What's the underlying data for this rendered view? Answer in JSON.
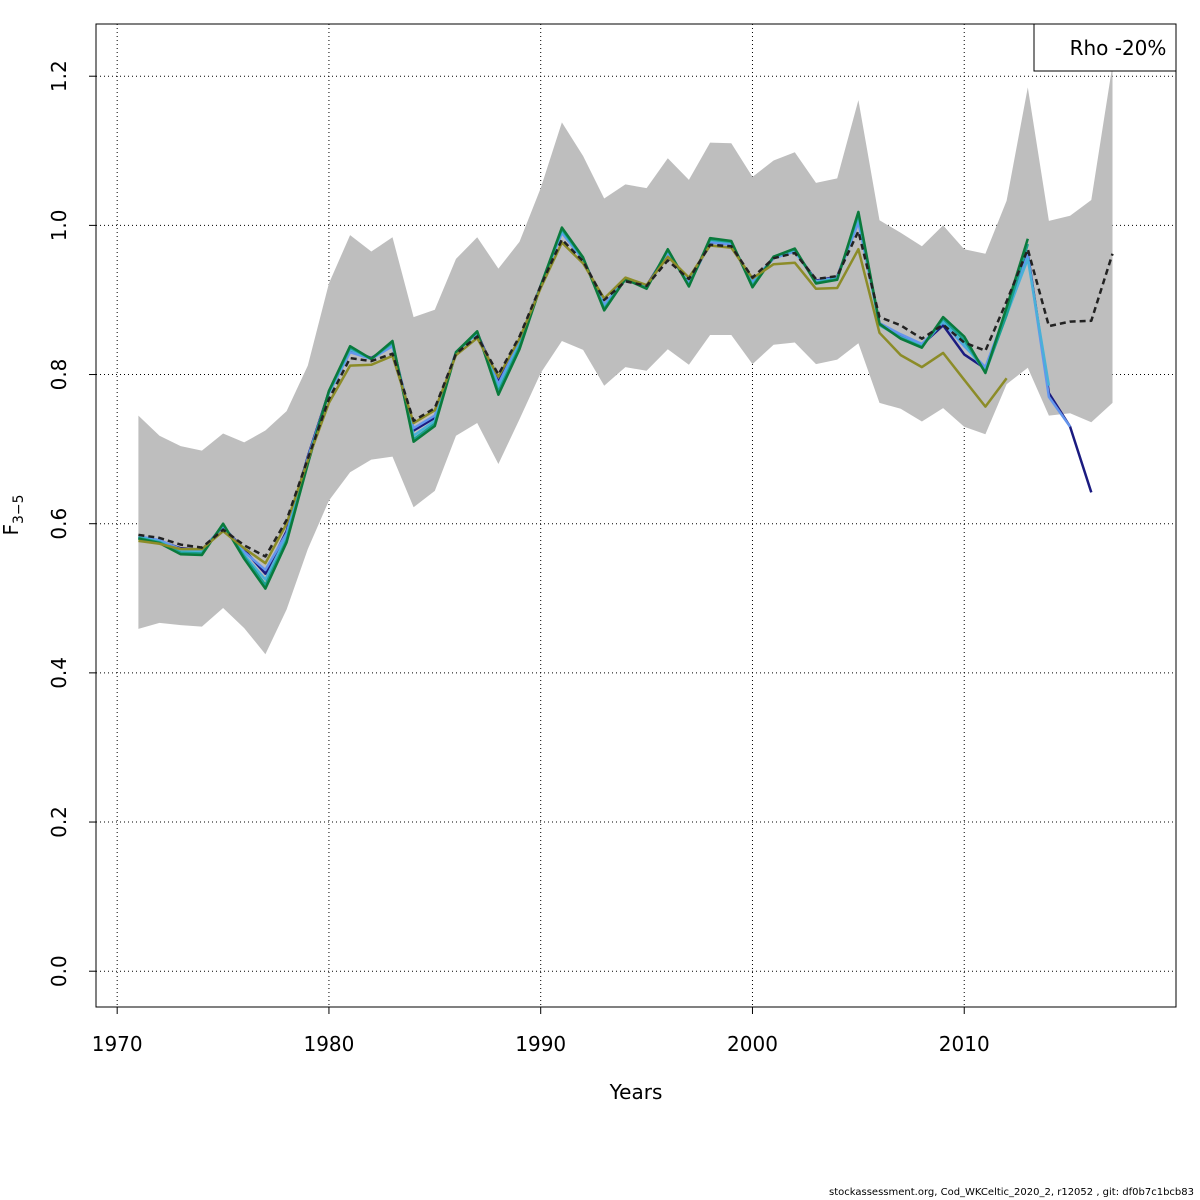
{
  "chart_data": {
    "type": "line",
    "title": "",
    "xlabel": "Years",
    "ylabel_main": "F",
    "ylabel_sub": "3−5",
    "xlim": [
      1969,
      2020
    ],
    "ylim": [
      -0.048,
      1.27
    ],
    "x_ticks": [
      1970,
      1980,
      1990,
      2000,
      2010
    ],
    "y_ticks": [
      0.0,
      0.2,
      0.4,
      0.6,
      0.8,
      1.0,
      1.2
    ],
    "x_tick_labels": [
      "1970",
      "1980",
      "1990",
      "2000",
      "2010"
    ],
    "y_tick_labels": [
      "0.0",
      "0.2",
      "0.4",
      "0.6",
      "0.8",
      "1.0",
      "1.2"
    ],
    "grid": true,
    "legend_placement": "top-right",
    "legend_text": "Rho -20%",
    "band": {
      "color": "#bebebe",
      "x": [
        1971,
        1972,
        1973,
        1974,
        1975,
        1976,
        1977,
        1978,
        1979,
        1980,
        1981,
        1982,
        1983,
        1984,
        1985,
        1986,
        1987,
        1988,
        1989,
        1990,
        1991,
        1992,
        1993,
        1994,
        1995,
        1996,
        1997,
        1998,
        1999,
        2000,
        2001,
        2002,
        2003,
        2004,
        2005,
        2006,
        2007,
        2008,
        2009,
        2010,
        2011,
        2012,
        2013,
        2014,
        2015,
        2016,
        2017
      ],
      "upper": [
        0.745,
        0.718,
        0.704,
        0.698,
        0.721,
        0.709,
        0.725,
        0.751,
        0.812,
        0.922,
        0.987,
        0.965,
        0.984,
        0.877,
        0.887,
        0.955,
        0.984,
        0.942,
        0.978,
        1.05,
        1.138,
        1.093,
        1.036,
        1.055,
        1.05,
        1.09,
        1.061,
        1.111,
        1.11,
        1.065,
        1.087,
        1.098,
        1.057,
        1.063,
        1.168,
        1.007,
        0.99,
        0.972,
        1.0,
        0.968,
        0.962,
        1.033,
        1.185,
        1.006,
        1.013,
        1.034,
        1.215
      ],
      "lower": [
        0.459,
        0.467,
        0.464,
        0.462,
        0.487,
        0.46,
        0.425,
        0.485,
        0.566,
        0.631,
        0.669,
        0.686,
        0.69,
        0.622,
        0.644,
        0.718,
        0.735,
        0.68,
        0.74,
        0.802,
        0.845,
        0.833,
        0.785,
        0.81,
        0.805,
        0.834,
        0.813,
        0.853,
        0.853,
        0.814,
        0.84,
        0.843,
        0.814,
        0.82,
        0.842,
        0.762,
        0.754,
        0.737,
        0.755,
        0.73,
        0.72,
        0.787,
        0.809,
        0.745,
        0.748,
        0.736,
        0.762
      ]
    },
    "series": [
      {
        "color": "#222222",
        "dashed": true,
        "x": [
          1971,
          1972,
          1973,
          1974,
          1975,
          1976,
          1977,
          1978,
          1979,
          1980,
          1981,
          1982,
          1983,
          1984,
          1985,
          1986,
          1987,
          1988,
          1989,
          1990,
          1991,
          1992,
          1993,
          1994,
          1995,
          1996,
          1997,
          1998,
          1999,
          2000,
          2001,
          2002,
          2003,
          2004,
          2005,
          2006,
          2007,
          2008,
          2009,
          2010,
          2011,
          2012,
          2013,
          2014,
          2015,
          2016,
          2017
        ],
        "values": [
          0.585,
          0.581,
          0.572,
          0.568,
          0.592,
          0.571,
          0.556,
          0.605,
          0.687,
          0.767,
          0.822,
          0.818,
          0.828,
          0.738,
          0.755,
          0.828,
          0.851,
          0.8,
          0.851,
          0.919,
          0.981,
          0.952,
          0.9,
          0.925,
          0.919,
          0.953,
          0.928,
          0.974,
          0.972,
          0.93,
          0.956,
          0.963,
          0.928,
          0.932,
          0.992,
          0.877,
          0.866,
          0.848,
          0.867,
          0.843,
          0.832,
          0.898,
          0.968,
          0.865,
          0.871,
          0.872,
          0.962
        ]
      },
      {
        "color": "#1b1b80",
        "x": [
          1971,
          1972,
          1973,
          1974,
          1975,
          1976,
          1977,
          1978,
          1979,
          1980,
          1981,
          1982,
          1983,
          1984,
          1985,
          1986,
          1987,
          1988,
          1989,
          1990,
          1991,
          1992,
          1993,
          1994,
          1995,
          1996,
          1997,
          1998,
          1999,
          2000,
          2001,
          2002,
          2003,
          2004,
          2005,
          2006,
          2007,
          2008,
          2009,
          2010,
          2011,
          2012,
          2013,
          2014,
          2015,
          2016
        ],
        "values": [
          0.582,
          0.577,
          0.567,
          0.565,
          0.596,
          0.565,
          0.533,
          0.59,
          0.69,
          0.777,
          0.833,
          0.822,
          0.84,
          0.725,
          0.742,
          0.83,
          0.856,
          0.79,
          0.846,
          0.919,
          0.992,
          0.955,
          0.893,
          0.928,
          0.919,
          0.965,
          0.921,
          0.978,
          0.975,
          0.924,
          0.956,
          0.966,
          0.926,
          0.931,
          1.008,
          0.868,
          0.853,
          0.84,
          0.866,
          0.827,
          0.808,
          0.882,
          0.962,
          0.775,
          0.73,
          0.642
        ]
      },
      {
        "color": "#6495ed",
        "x": [
          1971,
          1972,
          1973,
          1974,
          1975,
          1976,
          1977,
          1978,
          1979,
          1980,
          1981,
          1982,
          1983,
          1984,
          1985,
          1986,
          1987,
          1988,
          1989,
          1990,
          1991,
          1992,
          1993,
          1994,
          1995,
          1996,
          1997,
          1998,
          1999,
          2000,
          2001,
          2002,
          2003,
          2004,
          2005,
          2006,
          2007,
          2008,
          2009,
          2010,
          2011,
          2012,
          2013,
          2014,
          2015
        ],
        "values": [
          0.583,
          0.578,
          0.566,
          0.564,
          0.597,
          0.562,
          0.538,
          0.587,
          0.688,
          0.775,
          0.83,
          0.821,
          0.838,
          0.728,
          0.745,
          0.83,
          0.855,
          0.787,
          0.844,
          0.919,
          0.99,
          0.954,
          0.894,
          0.927,
          0.918,
          0.963,
          0.922,
          0.977,
          0.974,
          0.925,
          0.956,
          0.965,
          0.925,
          0.93,
          1.004,
          0.869,
          0.854,
          0.841,
          0.87,
          0.838,
          0.81,
          0.885,
          0.96,
          0.77,
          0.73
        ]
      },
      {
        "color": "#4ab0d8",
        "x": [
          1971,
          1972,
          1973,
          1974,
          1975,
          1976,
          1977,
          1978,
          1979,
          1980,
          1981,
          1982,
          1983,
          1984,
          1985,
          1986,
          1987,
          1988,
          1989,
          1990,
          1991,
          1992,
          1993,
          1994,
          1995,
          1996,
          1997,
          1998,
          1999,
          2000,
          2001,
          2002,
          2003,
          2004,
          2005,
          2006,
          2007,
          2008,
          2009,
          2010,
          2011,
          2012,
          2013,
          2014
        ],
        "values": [
          0.582,
          0.576,
          0.563,
          0.562,
          0.598,
          0.558,
          0.525,
          0.582,
          0.685,
          0.776,
          0.834,
          0.821,
          0.842,
          0.718,
          0.738,
          0.83,
          0.856,
          0.782,
          0.84,
          0.919,
          0.993,
          0.955,
          0.89,
          0.928,
          0.917,
          0.966,
          0.92,
          0.98,
          0.977,
          0.921,
          0.957,
          0.967,
          0.924,
          0.929,
          1.012,
          0.866,
          0.85,
          0.838,
          0.871,
          0.84,
          0.805,
          0.88,
          0.955,
          0.785
        ]
      },
      {
        "color": "#1aa090",
        "x": [
          1971,
          1972,
          1973,
          1974,
          1975,
          1976,
          1977,
          1978,
          1979,
          1980,
          1981,
          1982,
          1983,
          1984,
          1985,
          1986,
          1987,
          1988,
          1989,
          1990,
          1991,
          1992,
          1993,
          1994,
          1995,
          1996,
          1997,
          1998,
          1999,
          2000,
          2001,
          2002,
          2003,
          2004,
          2005,
          2006,
          2007,
          2008,
          2009,
          2010,
          2011,
          2012,
          2013
        ],
        "values": [
          0.581,
          0.575,
          0.561,
          0.56,
          0.599,
          0.556,
          0.518,
          0.578,
          0.682,
          0.777,
          0.836,
          0.821,
          0.843,
          0.713,
          0.734,
          0.83,
          0.857,
          0.777,
          0.837,
          0.919,
          0.995,
          0.956,
          0.888,
          0.928,
          0.916,
          0.967,
          0.919,
          0.981,
          0.978,
          0.919,
          0.958,
          0.968,
          0.923,
          0.928,
          1.015,
          0.867,
          0.849,
          0.837,
          0.875,
          0.846,
          0.803,
          0.88,
          0.975
        ]
      },
      {
        "color": "#0a7a3c",
        "x": [
          1971,
          1972,
          1973,
          1974,
          1975,
          1976,
          1977,
          1978,
          1979,
          1980,
          1981,
          1982,
          1983,
          1984,
          1985,
          1986,
          1987,
          1988,
          1989,
          1990,
          1991,
          1992,
          1993,
          1994,
          1995,
          1996,
          1997,
          1998,
          1999,
          2000,
          2001,
          2002,
          2003,
          2004,
          2005,
          2006,
          2007,
          2008,
          2009,
          2010,
          2011,
          2012,
          2013
        ],
        "values": [
          0.58,
          0.574,
          0.559,
          0.558,
          0.6,
          0.553,
          0.513,
          0.575,
          0.68,
          0.778,
          0.838,
          0.821,
          0.845,
          0.71,
          0.731,
          0.83,
          0.858,
          0.773,
          0.834,
          0.919,
          0.997,
          0.957,
          0.886,
          0.928,
          0.915,
          0.968,
          0.918,
          0.983,
          0.979,
          0.917,
          0.958,
          0.969,
          0.922,
          0.927,
          1.018,
          0.868,
          0.848,
          0.836,
          0.877,
          0.851,
          0.802,
          0.89,
          0.982
        ]
      },
      {
        "color": "#8c8c28",
        "x": [
          1971,
          1972,
          1973,
          1974,
          1975,
          1976,
          1977,
          1978,
          1979,
          1980,
          1981,
          1982,
          1983,
          1984,
          1985,
          1986,
          1987,
          1988,
          1989,
          1990,
          1991,
          1992,
          1993,
          1994,
          1995,
          1996,
          1997,
          1998,
          1999,
          2000,
          2001,
          2002,
          2003,
          2004,
          2005,
          2006,
          2007,
          2008,
          2009,
          2010,
          2011,
          2012
        ],
        "values": [
          0.577,
          0.573,
          0.566,
          0.566,
          0.59,
          0.567,
          0.547,
          0.6,
          0.685,
          0.762,
          0.812,
          0.813,
          0.825,
          0.735,
          0.752,
          0.826,
          0.849,
          0.797,
          0.848,
          0.916,
          0.977,
          0.949,
          0.902,
          0.93,
          0.92,
          0.958,
          0.93,
          0.973,
          0.97,
          0.929,
          0.948,
          0.95,
          0.915,
          0.916,
          0.968,
          0.856,
          0.826,
          0.81,
          0.829,
          0.793,
          0.757,
          0.795
        ]
      }
    ]
  },
  "footer_text": "stockassessment.org, Cod_WKCeltic_2020_2, r12052 , git: df0b7c1bcb83"
}
